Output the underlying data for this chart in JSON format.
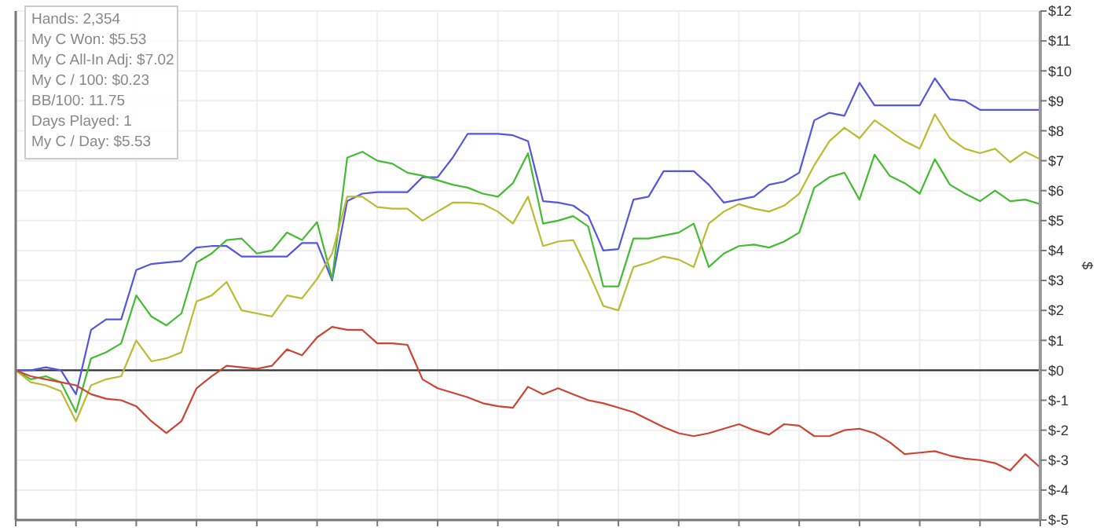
{
  "chart_data": {
    "type": "line",
    "ylabel": "$",
    "annotations": [
      "Hands: 2,354",
      "My C Won: $5.53",
      "My C All-In Adj: $7.02",
      "My C / 100: $0.23",
      "BB/100: 11.75",
      "Days Played: 1",
      "My C / Day: $5.53"
    ],
    "categories": [
      null,
      null,
      null,
      null,
      null,
      null,
      null,
      null,
      null,
      null,
      null,
      null,
      null,
      null,
      null,
      null,
      null,
      null,
      null,
      null,
      null,
      null,
      null,
      null,
      null,
      null,
      null,
      null,
      null,
      null,
      null,
      null,
      null,
      null,
      null,
      null,
      null,
      null,
      null,
      null,
      null,
      null,
      null,
      null,
      null,
      null,
      null,
      null,
      null,
      null,
      null,
      null,
      null,
      null,
      null,
      null,
      null,
      null,
      null,
      null,
      null,
      null,
      null,
      null,
      null,
      null,
      null,
      null,
      null
    ],
    "ylim": [
      -5,
      12
    ],
    "yticks": [
      {
        "value": -5,
        "label": "$-5"
      },
      {
        "value": -4,
        "label": "$-4"
      },
      {
        "value": -3,
        "label": "$-3"
      },
      {
        "value": -2,
        "label": "$-2"
      },
      {
        "value": -1,
        "label": "$-1"
      },
      {
        "value": 0,
        "label": "$0"
      },
      {
        "value": 1,
        "label": "$1"
      },
      {
        "value": 2,
        "label": "$2"
      },
      {
        "value": 3,
        "label": "$3"
      },
      {
        "value": 4,
        "label": "$4"
      },
      {
        "value": 5,
        "label": "$5"
      },
      {
        "value": 6,
        "label": "$6"
      },
      {
        "value": 7,
        "label": "$7"
      },
      {
        "value": 8,
        "label": "$8"
      },
      {
        "value": 9,
        "label": "$9"
      },
      {
        "value": 10,
        "label": "$10"
      },
      {
        "value": 11,
        "label": "$11"
      },
      {
        "value": 12,
        "label": "$12"
      }
    ],
    "grid": true,
    "marker": "none",
    "line_style": "solid",
    "ref_lines": [
      {
        "axis": "y",
        "value": 0,
        "color": "#333333"
      }
    ],
    "series": [
      {
        "color": "#5555dd",
        "values": [
          0,
          0,
          0.1,
          0,
          -0.8,
          1.35,
          1.7,
          1.7,
          3.35,
          3.55,
          3.6,
          3.65,
          4.1,
          4.15,
          4.15,
          3.8,
          3.8,
          3.8,
          3.8,
          4.25,
          4.25,
          3.0,
          5.65,
          5.9,
          5.95,
          5.95,
          5.95,
          6.45,
          6.45,
          7.1,
          7.9,
          7.9,
          7.9,
          7.85,
          7.65,
          5.65,
          5.6,
          5.5,
          5.15,
          4.0,
          4.05,
          5.7,
          5.8,
          6.65,
          6.65,
          6.65,
          6.2,
          5.6,
          5.7,
          5.8,
          6.2,
          6.3,
          6.6,
          8.35,
          8.6,
          8.5,
          9.6,
          8.85,
          8.85,
          8.85,
          8.85,
          9.75,
          9.05,
          9.0,
          8.7,
          8.7,
          8.7,
          8.7,
          8.7
        ]
      },
      {
        "color": "#44bb33",
        "values": [
          0,
          -0.3,
          -0.2,
          -0.4,
          -1.4,
          0.4,
          0.6,
          0.9,
          2.5,
          1.8,
          1.5,
          1.9,
          3.6,
          3.9,
          4.35,
          4.4,
          3.9,
          4.0,
          4.6,
          4.35,
          4.95,
          3.05,
          7.1,
          7.3,
          7.0,
          6.9,
          6.6,
          6.5,
          6.35,
          6.2,
          6.1,
          5.9,
          5.8,
          6.25,
          7.25,
          4.9,
          5.0,
          5.15,
          4.8,
          2.8,
          2.8,
          4.4,
          4.4,
          4.5,
          4.6,
          4.9,
          3.45,
          3.9,
          4.15,
          4.2,
          4.1,
          4.3,
          4.6,
          6.1,
          6.45,
          6.6,
          5.7,
          7.2,
          6.5,
          6.25,
          5.9,
          7.05,
          6.2,
          5.9,
          5.65,
          6.0,
          5.65,
          5.7,
          5.55
        ]
      },
      {
        "color": "#bbbb33",
        "values": [
          0,
          -0.4,
          -0.5,
          -0.7,
          -1.7,
          -0.5,
          -0.3,
          -0.2,
          1.0,
          0.3,
          0.4,
          0.6,
          2.3,
          2.5,
          2.95,
          2.0,
          1.9,
          1.8,
          2.5,
          2.4,
          3.05,
          3.9,
          5.8,
          5.8,
          5.45,
          5.4,
          5.4,
          5.0,
          5.3,
          5.6,
          5.6,
          5.55,
          5.3,
          4.9,
          5.8,
          4.15,
          4.3,
          4.35,
          3.3,
          2.15,
          2.0,
          3.45,
          3.6,
          3.8,
          3.7,
          3.45,
          4.9,
          5.3,
          5.55,
          5.4,
          5.3,
          5.5,
          5.9,
          6.85,
          7.65,
          8.1,
          7.75,
          8.35,
          8.0,
          7.65,
          7.4,
          8.55,
          7.75,
          7.4,
          7.25,
          7.4,
          6.95,
          7.3,
          7.05
        ]
      },
      {
        "color": "#cc4433",
        "values": [
          0,
          -0.2,
          -0.3,
          -0.4,
          -0.5,
          -0.8,
          -0.95,
          -1.0,
          -1.2,
          -1.7,
          -2.1,
          -1.7,
          -0.6,
          -0.2,
          0.15,
          0.1,
          0.05,
          0.15,
          0.7,
          0.5,
          1.1,
          1.45,
          1.35,
          1.35,
          0.9,
          0.9,
          0.85,
          -0.3,
          -0.6,
          -0.75,
          -0.9,
          -1.1,
          -1.2,
          -1.25,
          -0.55,
          -0.8,
          -0.6,
          -0.8,
          -1.0,
          -1.1,
          -1.25,
          -1.4,
          -1.65,
          -1.9,
          -2.1,
          -2.2,
          -2.1,
          -1.95,
          -1.8,
          -2.0,
          -2.15,
          -1.8,
          -1.85,
          -2.2,
          -2.2,
          -2.0,
          -1.95,
          -2.1,
          -2.4,
          -2.8,
          -2.75,
          -2.7,
          -2.85,
          -2.95,
          -3.0,
          -3.1,
          -3.35,
          -2.8,
          -3.25
        ]
      }
    ]
  }
}
